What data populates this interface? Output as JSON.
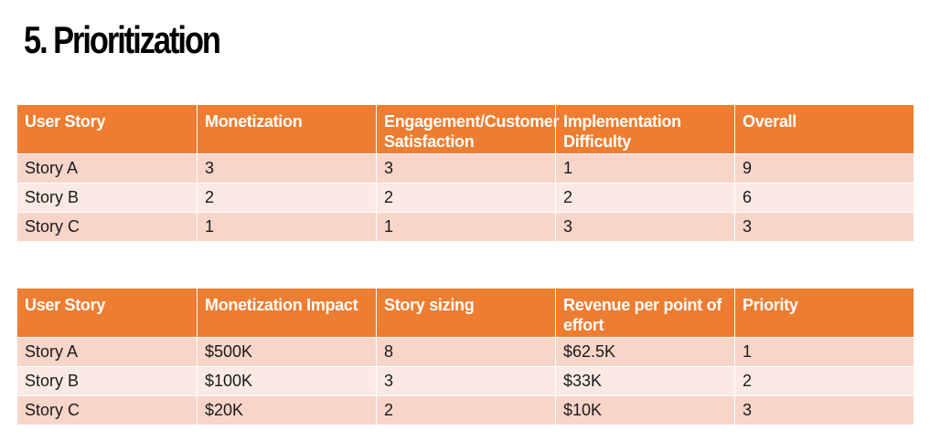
{
  "title": "5. Prioritization",
  "table1": {
    "headers": [
      "User Story",
      "Monetization",
      "Engagement/Customer Satisfaction",
      "Implementation Difficulty",
      "Overall"
    ],
    "rows": [
      [
        "Story A",
        "3",
        "3",
        "1",
        "9"
      ],
      [
        "Story B",
        "2",
        "2",
        "2",
        "6"
      ],
      [
        "Story C",
        "1",
        "1",
        "3",
        "3"
      ]
    ]
  },
  "table2": {
    "headers": [
      "User Story",
      "Monetization Impact",
      "Story sizing",
      "Revenue per point of effort",
      "Priority"
    ],
    "rows": [
      [
        "Story A",
        "$500K",
        "8",
        "$62.5K",
        "1"
      ],
      [
        "Story B",
        "$100K",
        "3",
        "$33K",
        "2"
      ],
      [
        "Story C",
        "$20K",
        "2",
        "$10K",
        "3"
      ]
    ]
  },
  "colors": {
    "header_bg": "#ed7d31",
    "row_band_dark": "#f8d5c9",
    "row_band_light": "#fbeae4"
  }
}
